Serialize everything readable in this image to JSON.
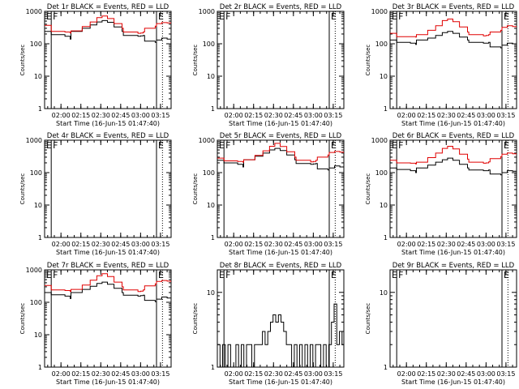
{
  "figure": {
    "background": "#ffffff",
    "axis_color": "#000000",
    "series_colors": {
      "events": "#000000",
      "lld": "#e00000"
    }
  },
  "chart_data": [
    {
      "type": "line",
      "title": "Det 1r BLACK = Events, RED = LLD",
      "xlabel": "Start Time (16-Jun-15 01:47:40)",
      "ylabel": "Counts/sec",
      "yscale": "log",
      "ylim": [
        1,
        1000
      ],
      "yticks": [
        "1",
        "10",
        "100",
        "1000"
      ],
      "xlim": [
        "01:47:40",
        "03:23:00"
      ],
      "xticks": [
        "02:00",
        "02:15",
        "02:30",
        "02:45",
        "03:00",
        "03:15"
      ],
      "markers": [
        {
          "label": "E",
          "time": "01:47:40",
          "style": "solid"
        },
        {
          "label": "F",
          "time": "01:52:40",
          "style": "solid"
        },
        {
          "label": "E",
          "time": "03:12:00",
          "style": "solid"
        },
        {
          "label": "",
          "time": "03:16:30",
          "style": "dotted"
        }
      ],
      "x": [
        "01:47:40",
        "01:52:40",
        "02:03:00",
        "02:07:00",
        "02:07:30",
        "02:16:00",
        "02:22:00",
        "02:27:00",
        "02:31:00",
        "02:35:00",
        "02:40:00",
        "02:46:00",
        "02:47:00",
        "02:58:00",
        "03:00:00",
        "03:02:00",
        "03:03:00",
        "03:11:00",
        "03:12:00",
        "03:16:00",
        "03:20:00",
        "03:23:00"
      ],
      "series": [
        {
          "key": "events",
          "values": [
            240,
            190,
            170,
            140,
            240,
            300,
            380,
            470,
            520,
            460,
            330,
            240,
            180,
            170,
            175,
            180,
            120,
            110,
            130,
            150,
            140,
            130
          ]
        },
        {
          "key": "lld",
          "values": [
            370,
            240,
            230,
            215,
            250,
            340,
            470,
            640,
            720,
            600,
            420,
            300,
            230,
            210,
            215,
            230,
            300,
            350,
            420,
            450,
            440,
            420
          ]
        }
      ]
    },
    {
      "type": "line",
      "title": "Det 2r BLACK = Events, RED = LLD",
      "xlabel": "Start Time (16-Jun-15 01:47:40)",
      "ylabel": "Counts/sec",
      "yscale": "log",
      "ylim": [
        1,
        1000
      ],
      "yticks": [
        "1",
        "10",
        "100",
        "1000"
      ],
      "xlim": [
        "01:47:40",
        "03:23:00"
      ],
      "xticks": [
        "02:00",
        "02:15",
        "02:30",
        "02:45",
        "03:00",
        "03:15"
      ],
      "markers": [
        {
          "label": "E",
          "time": "01:47:40",
          "style": "solid"
        },
        {
          "label": "F",
          "time": "01:52:40",
          "style": "solid"
        },
        {
          "label": "E",
          "time": "03:12:00",
          "style": "solid"
        },
        {
          "label": "",
          "time": "03:16:30",
          "style": "dotted"
        }
      ],
      "x": [],
      "series": []
    },
    {
      "type": "line",
      "title": "Det 3r BLACK = Events, RED = LLD",
      "xlabel": "Start Time (16-Jun-15 01:47:40)",
      "ylabel": "Counts/sec",
      "yscale": "log",
      "ylim": [
        1,
        1000
      ],
      "yticks": [
        "1",
        "10",
        "100",
        "1000"
      ],
      "xlim": [
        "01:47:40",
        "03:23:00"
      ],
      "xticks": [
        "02:00",
        "02:15",
        "02:30",
        "02:45",
        "03:00",
        "03:15"
      ],
      "markers": [
        {
          "label": "E",
          "time": "01:47:40",
          "style": "solid"
        },
        {
          "label": "F",
          "time": "01:52:40",
          "style": "solid"
        },
        {
          "label": "E",
          "time": "03:12:00",
          "style": "solid"
        },
        {
          "label": "",
          "time": "03:16:30",
          "style": "dotted"
        }
      ],
      "x": [
        "01:47:40",
        "01:52:40",
        "02:03:00",
        "02:07:00",
        "02:07:30",
        "02:16:00",
        "02:22:00",
        "02:27:00",
        "02:31:00",
        "02:35:00",
        "02:40:00",
        "02:46:00",
        "02:47:00",
        "02:58:00",
        "03:00:00",
        "03:02:00",
        "03:03:00",
        "03:11:00",
        "03:12:00",
        "03:16:00",
        "03:20:00",
        "03:23:00"
      ],
      "series": [
        {
          "key": "events",
          "values": [
            130,
            110,
            105,
            95,
            130,
            150,
            180,
            220,
            240,
            210,
            160,
            130,
            110,
            105,
            105,
            110,
            80,
            75,
            90,
            105,
            100,
            95
          ]
        },
        {
          "key": "lld",
          "values": [
            210,
            165,
            165,
            160,
            190,
            260,
            360,
            520,
            580,
            480,
            330,
            230,
            190,
            175,
            180,
            190,
            230,
            260,
            320,
            360,
            340,
            320
          ]
        }
      ]
    },
    {
      "type": "line",
      "title": "Det 4r BLACK = Events, RED = LLD",
      "xlabel": "Start Time (16-Jun-15 01:47:40)",
      "ylabel": "Counts/sec",
      "yscale": "log",
      "ylim": [
        1,
        1000
      ],
      "yticks": [
        "1",
        "10",
        "100",
        "1000"
      ],
      "xlim": [
        "01:47:40",
        "03:23:00"
      ],
      "xticks": [
        "02:00",
        "02:15",
        "02:30",
        "02:45",
        "03:00",
        "03:15"
      ],
      "markers": [
        {
          "label": "E",
          "time": "01:47:40",
          "style": "solid"
        },
        {
          "label": "F",
          "time": "01:52:40",
          "style": "solid"
        },
        {
          "label": "E",
          "time": "03:12:00",
          "style": "solid"
        },
        {
          "label": "",
          "time": "03:16:30",
          "style": "dotted"
        }
      ],
      "x": [],
      "series": []
    },
    {
      "type": "line",
      "title": "Det 5r BLACK = Events, RED = LLD",
      "xlabel": "Start Time (16-Jun-15 01:47:40)",
      "ylabel": "Counts/sec",
      "yscale": "log",
      "ylim": [
        1,
        1000
      ],
      "yticks": [
        "1",
        "10",
        "100",
        "1000"
      ],
      "xlim": [
        "01:47:40",
        "03:23:00"
      ],
      "xticks": [
        "02:00",
        "02:15",
        "02:30",
        "02:45",
        "03:00",
        "03:15"
      ],
      "markers": [
        {
          "label": "E",
          "time": "01:47:40",
          "style": "solid"
        },
        {
          "label": "F",
          "time": "01:52:40",
          "style": "solid"
        },
        {
          "label": "E",
          "time": "03:12:00",
          "style": "solid"
        },
        {
          "label": "",
          "time": "03:16:30",
          "style": "dotted"
        }
      ],
      "x": [
        "01:47:40",
        "01:52:40",
        "02:03:00",
        "02:07:00",
        "02:07:30",
        "02:16:00",
        "02:22:00",
        "02:27:00",
        "02:31:00",
        "02:35:00",
        "02:40:00",
        "02:46:00",
        "02:47:00",
        "02:58:00",
        "03:00:00",
        "03:02:00",
        "03:03:00",
        "03:11:00",
        "03:12:00",
        "03:16:00",
        "03:20:00",
        "03:23:00"
      ],
      "series": [
        {
          "key": "events",
          "values": [
            240,
            200,
            180,
            150,
            250,
            320,
            400,
            500,
            560,
            480,
            350,
            250,
            190,
            180,
            185,
            190,
            130,
            120,
            140,
            160,
            150,
            140
          ]
        },
        {
          "key": "lld",
          "values": [
            280,
            230,
            220,
            210,
            250,
            340,
            470,
            650,
            800,
            640,
            440,
            300,
            240,
            215,
            220,
            240,
            300,
            350,
            420,
            450,
            430,
            400
          ]
        }
      ]
    },
    {
      "type": "line",
      "title": "Det 6r BLACK = Events, RED = LLD",
      "xlabel": "Start Time (16-Jun-15 01:47:40)",
      "ylabel": "Counts/sec",
      "yscale": "log",
      "ylim": [
        1,
        1000
      ],
      "yticks": [
        "1",
        "10",
        "100",
        "1000"
      ],
      "xlim": [
        "01:47:40",
        "03:23:00"
      ],
      "xticks": [
        "02:00",
        "02:15",
        "02:30",
        "02:45",
        "03:00",
        "03:15"
      ],
      "markers": [
        {
          "label": "E",
          "time": "01:47:40",
          "style": "solid"
        },
        {
          "label": "F",
          "time": "01:52:40",
          "style": "solid"
        },
        {
          "label": "E",
          "time": "03:12:00",
          "style": "solid"
        },
        {
          "label": "",
          "time": "03:16:30",
          "style": "dotted"
        }
      ],
      "x": [
        "01:47:40",
        "01:52:40",
        "02:03:00",
        "02:07:00",
        "02:07:30",
        "02:16:00",
        "02:22:00",
        "02:27:00",
        "02:31:00",
        "02:35:00",
        "02:40:00",
        "02:46:00",
        "02:47:00",
        "02:58:00",
        "03:00:00",
        "03:02:00",
        "03:03:00",
        "03:11:00",
        "03:12:00",
        "03:16:00",
        "03:20:00",
        "03:23:00"
      ],
      "series": [
        {
          "key": "events",
          "values": [
            140,
            125,
            115,
            100,
            140,
            170,
            210,
            250,
            280,
            240,
            180,
            140,
            120,
            115,
            115,
            120,
            90,
            85,
            100,
            115,
            110,
            105
          ]
        },
        {
          "key": "lld",
          "values": [
            240,
            200,
            195,
            185,
            210,
            290,
            400,
            560,
            650,
            540,
            370,
            260,
            210,
            195,
            200,
            215,
            270,
            310,
            370,
            400,
            380,
            360
          ]
        }
      ]
    },
    {
      "type": "line",
      "title": "Det 7r BLACK = Events, RED = LLD",
      "xlabel": "Start Time (16-Jun-15 01:47:40)",
      "ylabel": "Counts/sec",
      "yscale": "log",
      "ylim": [
        1,
        1000
      ],
      "yticks": [
        "1",
        "10",
        "100",
        "1000"
      ],
      "xlim": [
        "01:47:40",
        "03:23:00"
      ],
      "xticks": [
        "02:00",
        "02:15",
        "02:30",
        "02:45",
        "03:00",
        "03:15"
      ],
      "markers": [
        {
          "label": "E",
          "time": "01:47:40",
          "style": "solid"
        },
        {
          "label": "F",
          "time": "01:52:40",
          "style": "solid"
        },
        {
          "label": "E",
          "time": "03:12:00",
          "style": "solid"
        },
        {
          "label": "",
          "time": "03:16:30",
          "style": "dotted"
        }
      ],
      "x": [
        "01:47:40",
        "01:52:40",
        "02:03:00",
        "02:07:00",
        "02:07:30",
        "02:16:00",
        "02:22:00",
        "02:27:00",
        "02:31:00",
        "02:35:00",
        "02:40:00",
        "02:46:00",
        "02:47:00",
        "02:58:00",
        "03:00:00",
        "03:02:00",
        "03:03:00",
        "03:11:00",
        "03:12:00",
        "03:16:00",
        "03:20:00",
        "03:23:00"
      ],
      "series": [
        {
          "key": "events",
          "values": [
            200,
            170,
            155,
            130,
            200,
            250,
            310,
            380,
            420,
            360,
            270,
            200,
            165,
            155,
            160,
            165,
            115,
            105,
            125,
            145,
            135,
            125
          ]
        },
        {
          "key": "lld",
          "values": [
            330,
            240,
            230,
            215,
            250,
            340,
            480,
            660,
            760,
            620,
            420,
            300,
            240,
            215,
            220,
            240,
            320,
            370,
            440,
            470,
            450,
            420
          ]
        }
      ]
    },
    {
      "type": "line",
      "title": "Det 8r BLACK = Events, RED = LLD",
      "xlabel": "Start Time (16-Jun-15 01:47:40)",
      "ylabel": "Counts/sec",
      "yscale": "log",
      "ylim": [
        1,
        20
      ],
      "yticks": [
        "1",
        "10"
      ],
      "xlim": [
        "01:47:40",
        "03:23:00"
      ],
      "xticks": [
        "02:00",
        "02:15",
        "02:30",
        "02:45",
        "03:00",
        "03:15"
      ],
      "markers": [
        {
          "label": "E",
          "time": "01:47:40",
          "style": "solid"
        },
        {
          "label": "F",
          "time": "01:52:40",
          "style": "solid"
        },
        {
          "label": "E",
          "time": "03:12:00",
          "style": "solid"
        },
        {
          "label": "",
          "time": "03:16:30",
          "style": "dotted"
        }
      ],
      "x": [
        "01:47:40",
        "01:49:40",
        "01:51:40",
        "01:53:40",
        "01:55:40",
        "01:57:40",
        "01:59:40",
        "02:01:40",
        "02:03:40",
        "02:05:40",
        "02:07:40",
        "02:09:40",
        "02:11:40",
        "02:13:40",
        "02:15:40",
        "02:17:40",
        "02:19:40",
        "02:21:40",
        "02:23:40",
        "02:25:40",
        "02:27:40",
        "02:29:40",
        "02:31:40",
        "02:33:40",
        "02:35:40",
        "02:37:40",
        "02:39:40",
        "02:41:40",
        "02:43:40",
        "02:45:40",
        "02:47:40",
        "02:49:40",
        "02:51:40",
        "02:53:40",
        "02:55:40",
        "02:57:40",
        "02:59:40",
        "03:01:40",
        "03:03:40",
        "03:05:40",
        "03:07:40",
        "03:09:40",
        "03:11:40",
        "03:13:40",
        "03:15:40",
        "03:17:40",
        "03:19:40",
        "03:21:40"
      ],
      "series": [
        {
          "key": "events",
          "values": [
            2,
            1,
            2,
            1,
            2,
            1,
            1,
            2,
            1,
            2,
            1,
            2,
            2,
            1,
            2,
            2,
            2,
            3,
            2,
            3,
            4,
            5,
            4,
            5,
            4,
            3,
            2,
            2,
            1,
            2,
            1,
            2,
            1,
            2,
            1,
            2,
            1,
            2,
            2,
            1,
            2,
            1,
            2,
            4,
            7,
            2,
            3,
            2
          ]
        }
      ]
    },
    {
      "type": "line",
      "title": "Det 9r BLACK = Events, RED = LLD",
      "xlabel": "Start Time (16-Jun-15 01:47:40)",
      "ylabel": "Counts/sec",
      "yscale": "log",
      "ylim": [
        1,
        20
      ],
      "yticks": [
        "1",
        "10"
      ],
      "xlim": [
        "01:47:40",
        "03:23:00"
      ],
      "xticks": [
        "02:00",
        "02:15",
        "02:30",
        "02:45",
        "03:00",
        "03:15"
      ],
      "markers": [
        {
          "label": "E",
          "time": "01:47:40",
          "style": "solid"
        },
        {
          "label": "F",
          "time": "01:52:40",
          "style": "solid"
        },
        {
          "label": "E",
          "time": "03:12:00",
          "style": "solid"
        },
        {
          "label": "",
          "time": "03:16:30",
          "style": "dotted"
        }
      ],
      "x": [],
      "series": []
    }
  ]
}
